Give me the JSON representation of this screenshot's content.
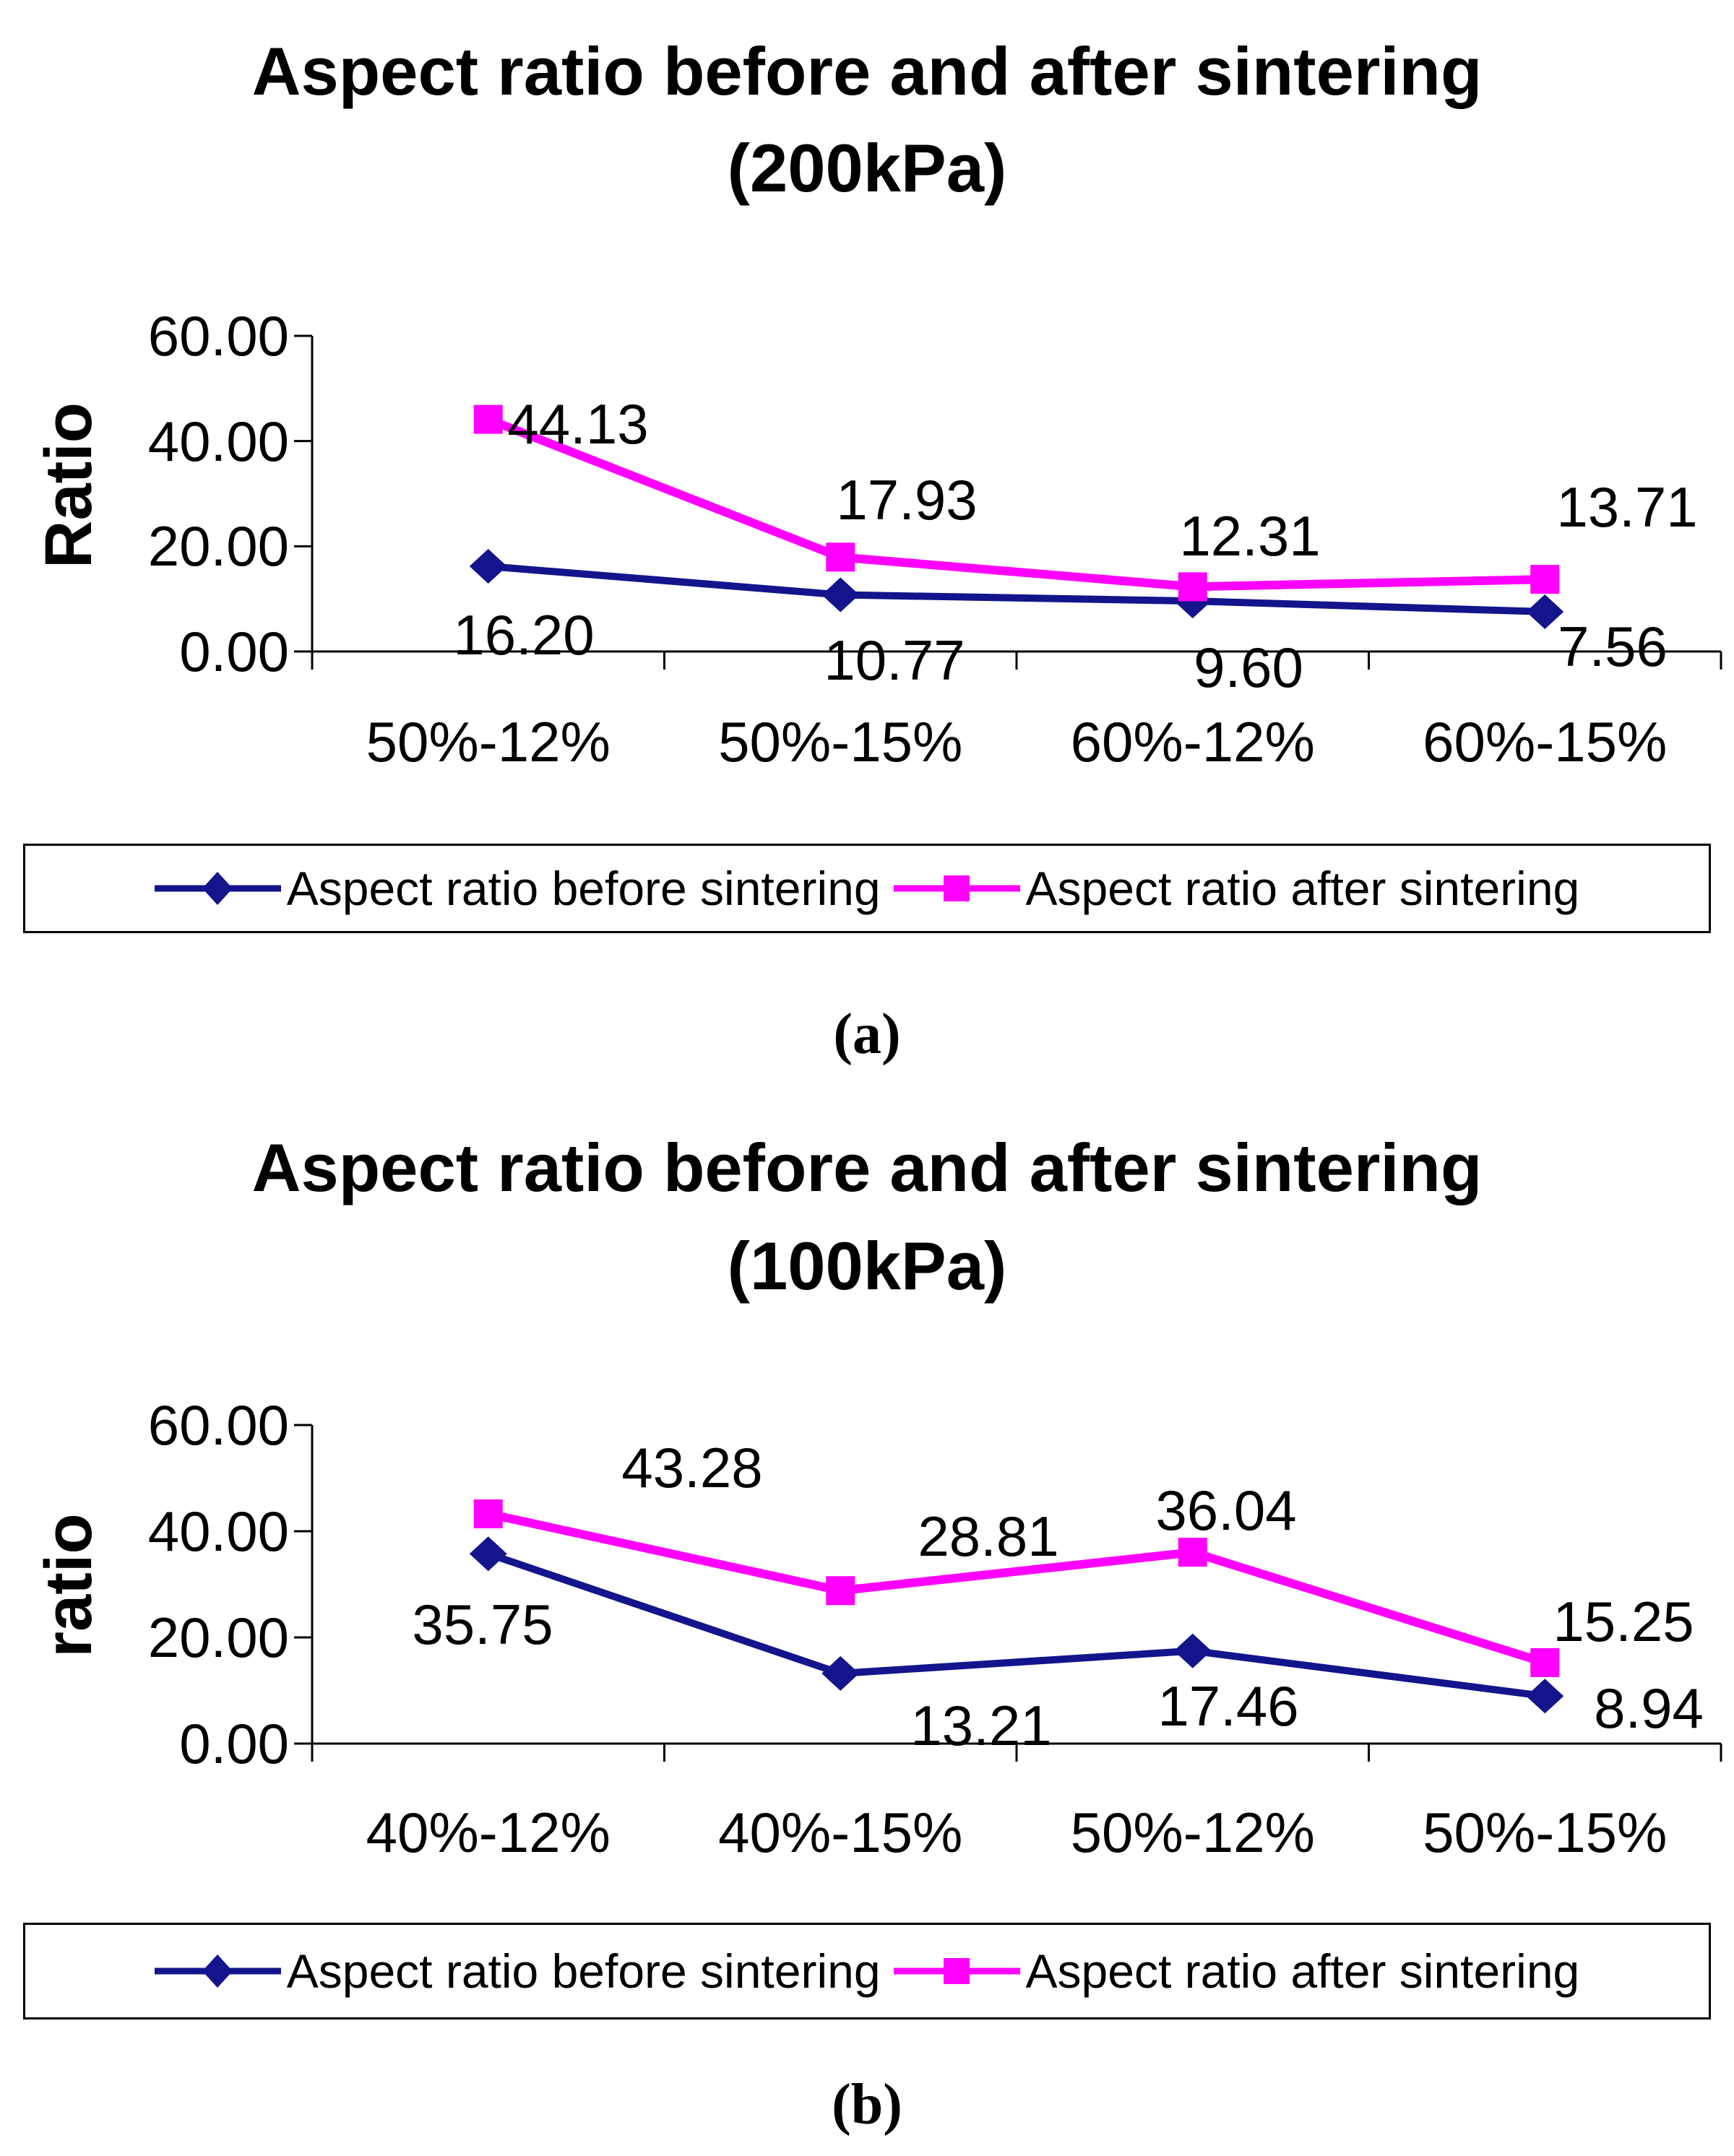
{
  "figure": {
    "captions": {
      "a": "(a)",
      "b": "(b)"
    }
  },
  "colors": {
    "series_before": "#14148c",
    "series_after": "#ff00ff",
    "axis": "#000000",
    "text": "#000000",
    "background": "#ffffff"
  },
  "chart_data": [
    {
      "type": "line",
      "title": "Aspect ratio before and after sintering",
      "subtitle": "(200kPa)",
      "ylabel": "Ratio",
      "xlabel": "",
      "categories": [
        "50%-12%",
        "50%-15%",
        "60%-12%",
        "60%-15%"
      ],
      "ylim": [
        0,
        60
      ],
      "yticks": [
        {
          "value": 0,
          "label": "0.00"
        },
        {
          "value": 20,
          "label": "20.00"
        },
        {
          "value": 40,
          "label": "40.00"
        },
        {
          "value": 60,
          "label": "60.00"
        }
      ],
      "grid": false,
      "legend_position": "bottom",
      "series": [
        {
          "name": "Aspect ratio before sintering",
          "marker": "diamond",
          "color": "#14148c",
          "values": [
            16.2,
            10.77,
            9.6,
            7.56
          ],
          "labels": [
            "16.20",
            "10.77",
            "9.60",
            "7.56"
          ]
        },
        {
          "name": "Aspect ratio after sintering",
          "marker": "square",
          "color": "#ff00ff",
          "values": [
            44.13,
            17.93,
            12.31,
            13.71
          ],
          "labels": [
            "44.13",
            "17.93",
            "12.31",
            "13.71"
          ]
        }
      ]
    },
    {
      "type": "line",
      "title": "Aspect ratio before and after sintering",
      "subtitle": "(100kPa)",
      "ylabel": "ratio",
      "xlabel": "",
      "categories": [
        "40%-12%",
        "40%-15%",
        "50%-12%",
        "50%-15%"
      ],
      "ylim": [
        0,
        60
      ],
      "yticks": [
        {
          "value": 0,
          "label": "0.00"
        },
        {
          "value": 20,
          "label": "20.00"
        },
        {
          "value": 40,
          "label": "40.00"
        },
        {
          "value": 60,
          "label": "60.00"
        }
      ],
      "grid": false,
      "legend_position": "bottom",
      "series": [
        {
          "name": "Aspect ratio before sintering",
          "marker": "diamond",
          "color": "#14148c",
          "values": [
            35.75,
            13.21,
            17.46,
            8.94
          ],
          "labels": [
            "35.75",
            "13.21",
            "17.46",
            "8.94"
          ]
        },
        {
          "name": "Aspect ratio after sintering",
          "marker": "square",
          "color": "#ff00ff",
          "values": [
            43.28,
            28.81,
            36.04,
            15.25
          ],
          "labels": [
            "43.28",
            "28.81",
            "36.04",
            "15.25"
          ]
        }
      ]
    }
  ]
}
